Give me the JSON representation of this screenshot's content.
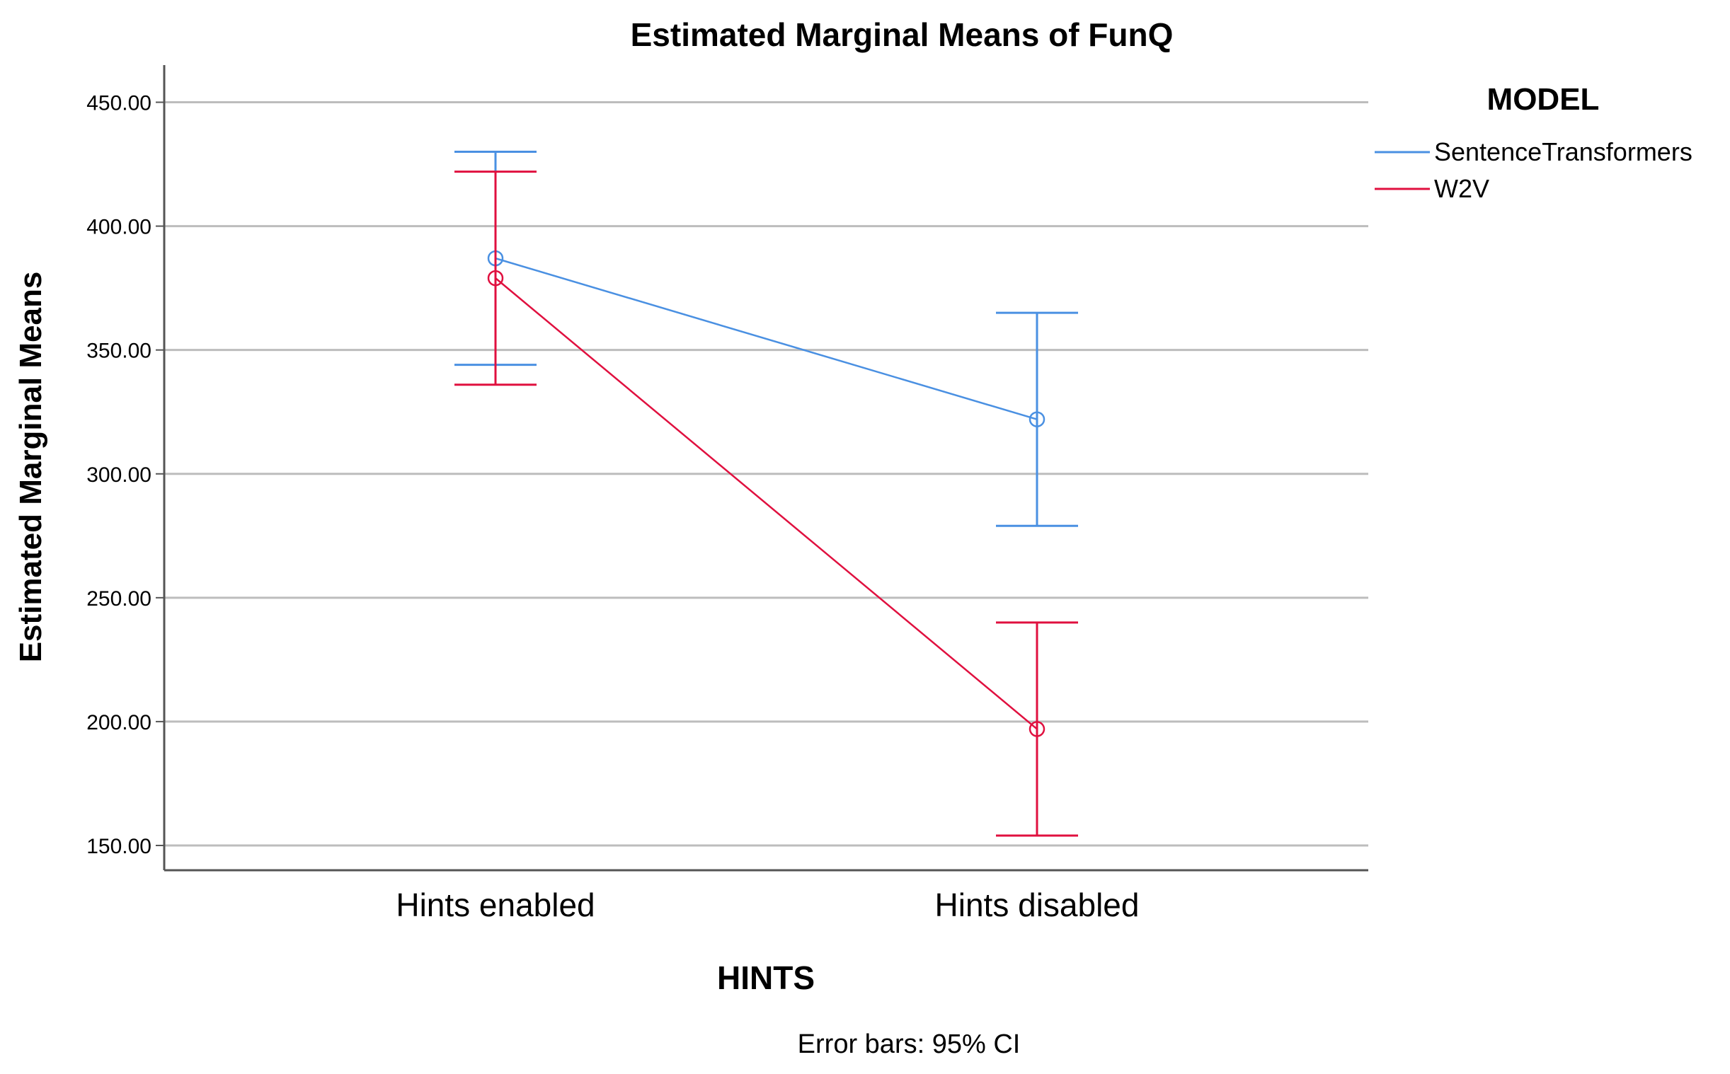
{
  "chart_data": {
    "type": "line",
    "title": "Estimated Marginal Means of FunQ",
    "xlabel": "HINTS",
    "ylabel": "Estimated Marginal Means",
    "footnote": "Error bars: 95% CI",
    "categories": [
      "Hints enabled",
      "Hints disabled"
    ],
    "ylim": [
      140,
      465
    ],
    "yticks": [
      150,
      200,
      250,
      300,
      350,
      400,
      450
    ],
    "ytick_labels": [
      "150.00",
      "200.00",
      "250.00",
      "300.00",
      "350.00",
      "400.00",
      "450.00"
    ],
    "grid": true,
    "legend": {
      "title": "MODEL",
      "position": "right"
    },
    "series": [
      {
        "name": "SentenceTransformers",
        "color": "#4a90e2",
        "values": [
          387,
          322
        ],
        "ci_lower": [
          344,
          279
        ],
        "ci_upper": [
          430,
          365
        ]
      },
      {
        "name": "W2V",
        "color": "#e0103f",
        "values": [
          379,
          197
        ],
        "ci_lower": [
          336,
          154
        ],
        "ci_upper": [
          422,
          240
        ]
      }
    ]
  }
}
